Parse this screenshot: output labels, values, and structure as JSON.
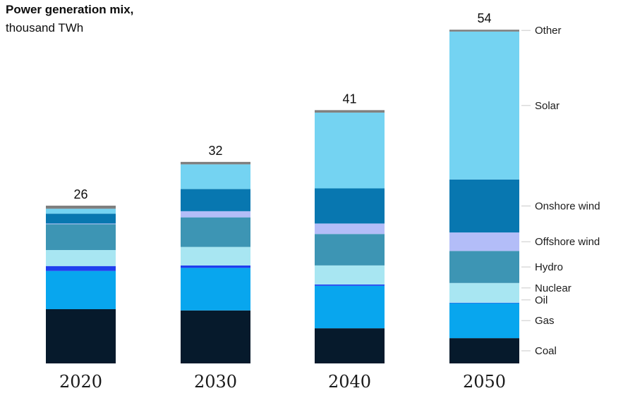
{
  "chart_data": {
    "type": "bar",
    "stacked": true,
    "title": "Power generation mix,",
    "subtitle": "thousand TWh",
    "categories": [
      "2020",
      "2030",
      "2040",
      "2050"
    ],
    "totals": [
      "26",
      "32",
      "41",
      "54"
    ],
    "series": [
      {
        "name": "Coal",
        "color": "#061a2c",
        "values": [
          8.8,
          8.6,
          5.7,
          4.1
        ]
      },
      {
        "name": "Gas",
        "color": "#08a6ee",
        "values": [
          6.2,
          6.9,
          6.9,
          5.7
        ]
      },
      {
        "name": "Oil",
        "color": "#1f3fef",
        "values": [
          0.8,
          0.4,
          0.2,
          0.05
        ]
      },
      {
        "name": "Nuclear",
        "color": "#a8e6f2",
        "values": [
          2.6,
          3.0,
          3.1,
          3.2
        ]
      },
      {
        "name": "Hydro",
        "color": "#3d95b4",
        "values": [
          4.2,
          4.8,
          5.1,
          5.2
        ]
      },
      {
        "name": "Offshore wind",
        "color": "#b3bdf8",
        "values": [
          0.1,
          1.0,
          1.7,
          3.0
        ]
      },
      {
        "name": "Onshore wind",
        "color": "#0877b0",
        "values": [
          1.6,
          3.6,
          5.7,
          8.6
        ]
      },
      {
        "name": "Solar",
        "color": "#74d3f2",
        "values": [
          0.8,
          4.0,
          12.3,
          24.0
        ]
      },
      {
        "name": "Other",
        "color": "#7f7f7f",
        "values": [
          0.5,
          0.4,
          0.4,
          0.3
        ]
      }
    ],
    "legend": {
      "placement": "right",
      "labels": [
        "Other",
        "Solar",
        "Onshore wind",
        "Offshore wind",
        "Hydro",
        "Nuclear",
        "Oil",
        "Gas",
        "Coal"
      ]
    },
    "ylim": [
      0,
      54
    ],
    "grid": false
  }
}
